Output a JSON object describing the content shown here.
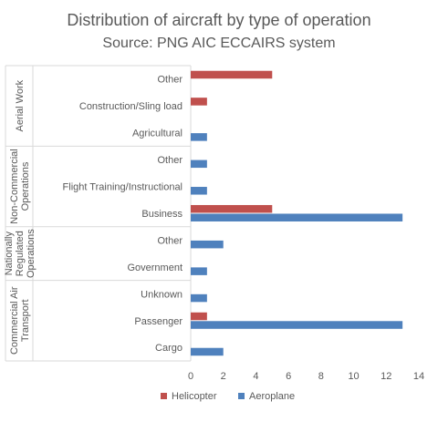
{
  "chart_data": {
    "type": "bar",
    "orientation": "horizontal",
    "title": "Distribution of aircraft by type of operation",
    "subtitle": "Source: PNG AIC ECCAIRS system",
    "xlim": [
      0,
      14
    ],
    "x_ticks": [
      "0",
      "2",
      "4",
      "6",
      "8",
      "10",
      "12",
      "14"
    ],
    "legend": {
      "position": "bottom"
    },
    "groups": [
      {
        "name": "Aerial Work",
        "label_lines": [
          "Aerial Work"
        ],
        "categories": [
          "Other",
          "Construction/Sling load",
          "Agricultural"
        ]
      },
      {
        "name": "Non-Commercial Operations",
        "label_lines": [
          "Non-Commercial",
          "Operations"
        ],
        "categories": [
          "Other",
          "Flight Training/Instructional",
          "Business"
        ]
      },
      {
        "name": "Nationally Regulated Operations",
        "label_lines": [
          "Nationally",
          "Regulated",
          "Operations"
        ],
        "categories": [
          "Other",
          "Government"
        ]
      },
      {
        "name": "Commercial Air Transport",
        "label_lines": [
          "Commercial Air",
          "Transport"
        ],
        "categories": [
          "Unknown",
          "Passenger",
          "Cargo"
        ]
      }
    ],
    "series": [
      {
        "name": "Helicopter",
        "color": "#c0504d",
        "values": [
          5,
          1,
          0,
          0,
          0,
          5,
          0,
          0,
          0,
          1,
          0
        ]
      },
      {
        "name": "Aeroplane",
        "color": "#4f81bd",
        "values": [
          0,
          0,
          1,
          1,
          1,
          13,
          2,
          1,
          1,
          13,
          2
        ]
      }
    ]
  }
}
